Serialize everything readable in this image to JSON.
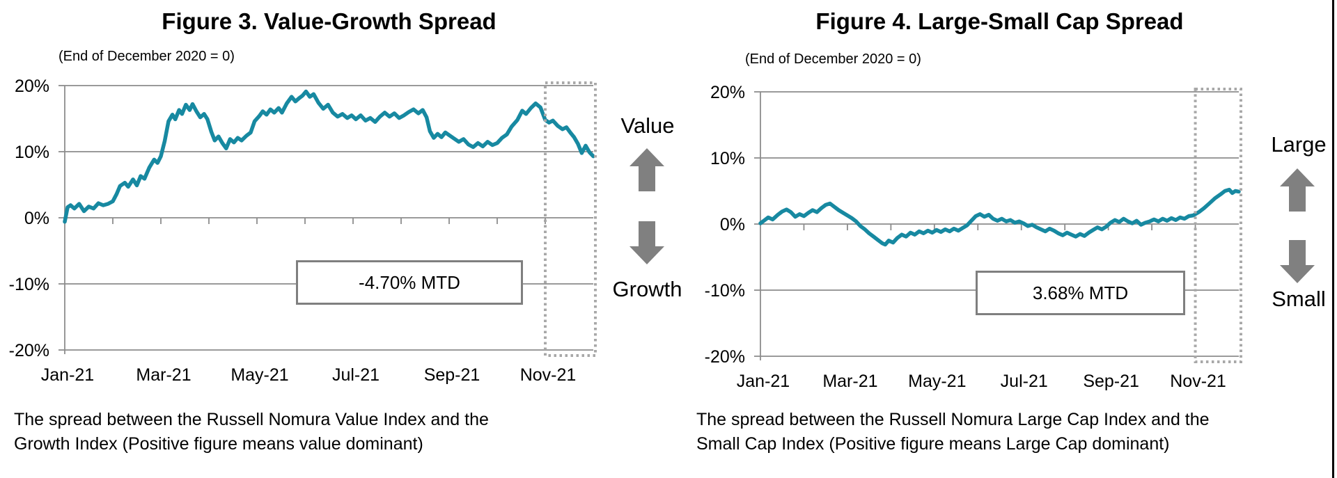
{
  "colors": {
    "line": "#1789a1",
    "grid": "#8c8c8c",
    "highlight_box": "#a8a8a8",
    "arrow": "#808080",
    "annotation_border": "#7f7f7f"
  },
  "chart_data": [
    {
      "type": "line",
      "title": "Figure 3. Value-Growth Spread",
      "subtitle": "(End of December 2020 = 0)",
      "footnote": "The spread between the Russell Nomura Value Index and the Growth Index (Positive figure means value dominant)",
      "ylim": [
        -20,
        20
      ],
      "y_tick_values": [
        20,
        10,
        0,
        -10,
        -20
      ],
      "y_tick_labels": [
        "20%",
        "10%",
        "0%",
        "-10%",
        "-20%"
      ],
      "x_tick_labels": [
        "Jan-21",
        "Mar-21",
        "May-21",
        "Jul-21",
        "Sep-21",
        "Nov-21"
      ],
      "x_tick_months": [
        0,
        2,
        4,
        6,
        8,
        10
      ],
      "x_total_months": 11,
      "grid": "horizontal",
      "legend": "none",
      "line_color": "#1789a1",
      "highlight_box_months": [
        10,
        11
      ],
      "annotations": {
        "mtd": "-4.70% MTD",
        "side_top": "Value",
        "side_bottom": "Growth"
      },
      "series": [
        {
          "name": "Value-Growth spread (%)",
          "points": [
            [
              0,
              -0.6
            ],
            [
              0.06,
              1.6
            ],
            [
              0.12,
              1.9
            ],
            [
              0.2,
              1.4
            ],
            [
              0.3,
              2.1
            ],
            [
              0.4,
              1.0
            ],
            [
              0.5,
              1.7
            ],
            [
              0.6,
              1.4
            ],
            [
              0.7,
              2.2
            ],
            [
              0.8,
              1.9
            ],
            [
              0.9,
              2.1
            ],
            [
              1.0,
              2.5
            ],
            [
              1.08,
              3.6
            ],
            [
              1.15,
              4.8
            ],
            [
              1.25,
              5.3
            ],
            [
              1.32,
              4.7
            ],
            [
              1.42,
              5.8
            ],
            [
              1.5,
              4.9
            ],
            [
              1.58,
              6.3
            ],
            [
              1.66,
              5.9
            ],
            [
              1.76,
              7.6
            ],
            [
              1.86,
              8.8
            ],
            [
              1.93,
              8.3
            ],
            [
              2.0,
              9.3
            ],
            [
              2.08,
              11.6
            ],
            [
              2.16,
              14.6
            ],
            [
              2.24,
              15.6
            ],
            [
              2.3,
              14.9
            ],
            [
              2.38,
              16.3
            ],
            [
              2.44,
              15.7
            ],
            [
              2.52,
              17.1
            ],
            [
              2.6,
              16.3
            ],
            [
              2.66,
              17.2
            ],
            [
              2.74,
              16.1
            ],
            [
              2.82,
              15.2
            ],
            [
              2.9,
              15.7
            ],
            [
              2.97,
              14.9
            ],
            [
              3.05,
              13.0
            ],
            [
              3.12,
              11.7
            ],
            [
              3.2,
              12.3
            ],
            [
              3.28,
              11.3
            ],
            [
              3.36,
              10.5
            ],
            [
              3.44,
              11.9
            ],
            [
              3.52,
              11.4
            ],
            [
              3.6,
              12.1
            ],
            [
              3.68,
              11.7
            ],
            [
              3.78,
              12.4
            ],
            [
              3.87,
              12.9
            ],
            [
              3.95,
              14.6
            ],
            [
              4.05,
              15.4
            ],
            [
              4.12,
              16.1
            ],
            [
              4.2,
              15.6
            ],
            [
              4.28,
              16.4
            ],
            [
              4.36,
              15.9
            ],
            [
              4.45,
              16.6
            ],
            [
              4.52,
              15.9
            ],
            [
              4.62,
              17.3
            ],
            [
              4.72,
              18.3
            ],
            [
              4.8,
              17.6
            ],
            [
              4.88,
              18.1
            ],
            [
              4.95,
              18.5
            ],
            [
              5.02,
              19.1
            ],
            [
              5.1,
              18.3
            ],
            [
              5.18,
              18.7
            ],
            [
              5.28,
              17.4
            ],
            [
              5.38,
              16.5
            ],
            [
              5.48,
              17.1
            ],
            [
              5.58,
              15.9
            ],
            [
              5.68,
              15.3
            ],
            [
              5.78,
              15.7
            ],
            [
              5.88,
              15.1
            ],
            [
              5.97,
              15.5
            ],
            [
              6.06,
              14.9
            ],
            [
              6.16,
              15.5
            ],
            [
              6.26,
              14.7
            ],
            [
              6.36,
              15.1
            ],
            [
              6.46,
              14.5
            ],
            [
              6.56,
              15.3
            ],
            [
              6.66,
              15.9
            ],
            [
              6.76,
              15.3
            ],
            [
              6.86,
              15.8
            ],
            [
              6.96,
              15.1
            ],
            [
              7.06,
              15.5
            ],
            [
              7.16,
              16.0
            ],
            [
              7.26,
              16.4
            ],
            [
              7.36,
              15.8
            ],
            [
              7.45,
              16.3
            ],
            [
              7.53,
              15.2
            ],
            [
              7.6,
              13.1
            ],
            [
              7.68,
              12.1
            ],
            [
              7.76,
              12.7
            ],
            [
              7.84,
              12.2
            ],
            [
              7.92,
              12.9
            ],
            [
              8.0,
              12.5
            ],
            [
              8.1,
              12.0
            ],
            [
              8.2,
              11.5
            ],
            [
              8.3,
              11.9
            ],
            [
              8.4,
              11.1
            ],
            [
              8.5,
              10.7
            ],
            [
              8.6,
              11.3
            ],
            [
              8.7,
              10.8
            ],
            [
              8.8,
              11.5
            ],
            [
              8.9,
              11.0
            ],
            [
              9.0,
              11.3
            ],
            [
              9.1,
              12.1
            ],
            [
              9.2,
              12.6
            ],
            [
              9.3,
              13.8
            ],
            [
              9.42,
              14.8
            ],
            [
              9.52,
              16.2
            ],
            [
              9.6,
              15.7
            ],
            [
              9.7,
              16.6
            ],
            [
              9.8,
              17.3
            ],
            [
              9.9,
              16.7
            ],
            [
              10.0,
              14.8
            ],
            [
              10.08,
              14.4
            ],
            [
              10.16,
              14.7
            ],
            [
              10.26,
              13.9
            ],
            [
              10.36,
              13.4
            ],
            [
              10.44,
              13.7
            ],
            [
              10.52,
              12.9
            ],
            [
              10.6,
              12.2
            ],
            [
              10.68,
              11.2
            ],
            [
              10.76,
              9.8
            ],
            [
              10.84,
              10.9
            ],
            [
              10.92,
              9.9
            ],
            [
              11,
              9.3
            ]
          ]
        }
      ]
    },
    {
      "type": "line",
      "title": "Figure 4. Large-Small Cap Spread",
      "subtitle": "(End of December 2020 = 0)",
      "footnote": "The spread between the Russell Nomura Large Cap Index and the Small Cap Index (Positive figure means Large Cap dominant)",
      "ylim": [
        -20,
        20
      ],
      "y_tick_values": [
        20,
        10,
        0,
        -10,
        -20
      ],
      "y_tick_labels": [
        "20%",
        "10%",
        "0%",
        "-10%",
        "-20%"
      ],
      "x_tick_labels": [
        "Jan-21",
        "Mar-21",
        "May-21",
        "Jul-21",
        "Sep-21",
        "Nov-21"
      ],
      "x_tick_months": [
        0,
        2,
        4,
        6,
        8,
        10
      ],
      "x_total_months": 11,
      "grid": "horizontal",
      "legend": "none",
      "line_color": "#1789a1",
      "highlight_box_months": [
        10,
        11
      ],
      "annotations": {
        "mtd": "3.68% MTD",
        "side_top": "Large",
        "side_bottom": "Small"
      },
      "series": [
        {
          "name": "Large-Small Cap spread (%)",
          "points": [
            [
              0,
              0.1
            ],
            [
              0.1,
              0.6
            ],
            [
              0.18,
              1.0
            ],
            [
              0.28,
              0.7
            ],
            [
              0.4,
              1.4
            ],
            [
              0.5,
              1.9
            ],
            [
              0.6,
              2.2
            ],
            [
              0.7,
              1.8
            ],
            [
              0.8,
              1.1
            ],
            [
              0.9,
              1.5
            ],
            [
              1.0,
              1.2
            ],
            [
              1.1,
              1.7
            ],
            [
              1.2,
              2.1
            ],
            [
              1.3,
              1.8
            ],
            [
              1.4,
              2.4
            ],
            [
              1.5,
              2.9
            ],
            [
              1.6,
              3.1
            ],
            [
              1.7,
              2.6
            ],
            [
              1.8,
              2.1
            ],
            [
              1.9,
              1.7
            ],
            [
              2.0,
              1.3
            ],
            [
              2.1,
              0.9
            ],
            [
              2.2,
              0.4
            ],
            [
              2.3,
              -0.3
            ],
            [
              2.4,
              -0.8
            ],
            [
              2.5,
              -1.4
            ],
            [
              2.6,
              -1.9
            ],
            [
              2.7,
              -2.4
            ],
            [
              2.8,
              -2.9
            ],
            [
              2.87,
              -3.1
            ],
            [
              2.95,
              -2.5
            ],
            [
              3.05,
              -2.8
            ],
            [
              3.15,
              -2.1
            ],
            [
              3.25,
              -1.6
            ],
            [
              3.35,
              -1.9
            ],
            [
              3.45,
              -1.3
            ],
            [
              3.55,
              -1.6
            ],
            [
              3.65,
              -1.1
            ],
            [
              3.75,
              -1.4
            ],
            [
              3.85,
              -1.0
            ],
            [
              3.95,
              -1.3
            ],
            [
              4.05,
              -0.9
            ],
            [
              4.15,
              -1.2
            ],
            [
              4.25,
              -0.8
            ],
            [
              4.35,
              -1.1
            ],
            [
              4.45,
              -0.7
            ],
            [
              4.55,
              -1.0
            ],
            [
              4.65,
              -0.6
            ],
            [
              4.75,
              -0.2
            ],
            [
              4.85,
              0.5
            ],
            [
              4.95,
              1.2
            ],
            [
              5.05,
              1.5
            ],
            [
              5.15,
              1.1
            ],
            [
              5.25,
              1.4
            ],
            [
              5.35,
              0.8
            ],
            [
              5.45,
              0.5
            ],
            [
              5.55,
              0.8
            ],
            [
              5.65,
              0.4
            ],
            [
              5.75,
              0.6
            ],
            [
              5.85,
              0.2
            ],
            [
              5.95,
              0.4
            ],
            [
              6.05,
              0.1
            ],
            [
              6.15,
              -0.3
            ],
            [
              6.25,
              -0.1
            ],
            [
              6.35,
              -0.5
            ],
            [
              6.45,
              -0.8
            ],
            [
              6.55,
              -1.1
            ],
            [
              6.65,
              -0.7
            ],
            [
              6.75,
              -1.0
            ],
            [
              6.85,
              -1.4
            ],
            [
              6.95,
              -1.7
            ],
            [
              7.05,
              -1.3
            ],
            [
              7.15,
              -1.6
            ],
            [
              7.25,
              -1.9
            ],
            [
              7.35,
              -1.5
            ],
            [
              7.45,
              -1.8
            ],
            [
              7.55,
              -1.3
            ],
            [
              7.65,
              -0.9
            ],
            [
              7.75,
              -0.5
            ],
            [
              7.85,
              -0.8
            ],
            [
              7.95,
              -0.4
            ],
            [
              8.05,
              0.2
            ],
            [
              8.15,
              0.6
            ],
            [
              8.25,
              0.3
            ],
            [
              8.35,
              0.8
            ],
            [
              8.45,
              0.4
            ],
            [
              8.55,
              0.1
            ],
            [
              8.65,
              0.5
            ],
            [
              8.75,
              -0.1
            ],
            [
              8.85,
              0.2
            ],
            [
              8.95,
              0.4
            ],
            [
              9.05,
              0.7
            ],
            [
              9.15,
              0.4
            ],
            [
              9.25,
              0.8
            ],
            [
              9.35,
              0.5
            ],
            [
              9.45,
              0.9
            ],
            [
              9.55,
              0.6
            ],
            [
              9.65,
              1.0
            ],
            [
              9.75,
              0.8
            ],
            [
              9.85,
              1.2
            ],
            [
              9.95,
              1.3
            ],
            [
              10.08,
              1.8
            ],
            [
              10.2,
              2.4
            ],
            [
              10.32,
              3.1
            ],
            [
              10.45,
              3.9
            ],
            [
              10.58,
              4.5
            ],
            [
              10.68,
              5.0
            ],
            [
              10.78,
              5.2
            ],
            [
              10.85,
              4.7
            ],
            [
              10.92,
              5.0
            ],
            [
              11,
              4.9
            ]
          ]
        }
      ]
    }
  ]
}
